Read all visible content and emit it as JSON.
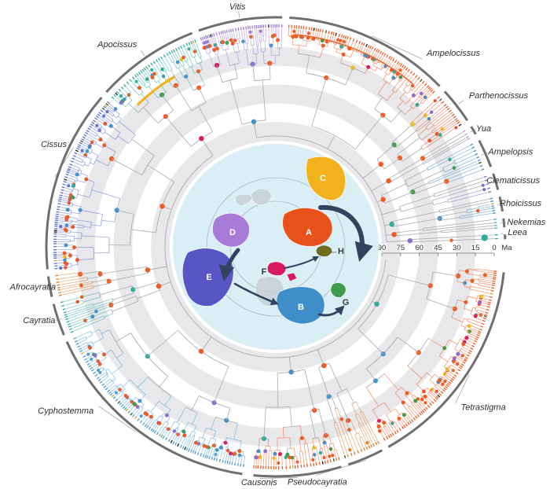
{
  "chart_data": {
    "type": "circular-phylogeny",
    "time_axis": {
      "unit": "Ma",
      "ticks": [
        90,
        75,
        60,
        45,
        30,
        15,
        0
      ],
      "max": 90
    },
    "clades": [
      {
        "name": "Vitis",
        "angle_start": -20,
        "angle_end": 2,
        "color": "#9b7fd4",
        "tips": 38
      },
      {
        "name": "Ampelocissus",
        "angle_start": 3,
        "angle_end": 46,
        "color": "#f15a22",
        "tips": 66,
        "label_angle": 38
      },
      {
        "name": "Parthenocissus",
        "angle_start": 47,
        "angle_end": 57,
        "color": "#e4572e",
        "tips": 14
      },
      {
        "name": "Yua",
        "angle_start": 58,
        "angle_end": 61,
        "color": "#c39bd3",
        "tips": 4
      },
      {
        "name": "Ampelopsis",
        "angle_start": 62,
        "angle_end": 70,
        "color": "#4a90c8",
        "tips": 11
      },
      {
        "name": "Clematicissus",
        "angle_start": 71,
        "angle_end": 76,
        "color": "#7d6bce",
        "tips": 6
      },
      {
        "name": "Rhoicissus",
        "angle_start": 77,
        "angle_end": 81.5,
        "color": "#4a90c8",
        "tips": 6
      },
      {
        "name": "Nekemias",
        "angle_start": 82.5,
        "angle_end": 85.5,
        "color": "#55a8cf",
        "tips": 4
      },
      {
        "name": "Leea",
        "angle_start": 86.5,
        "angle_end": 88.5,
        "color": "#2fae9b",
        "tips": 2,
        "accent_dot": true,
        "label_angle": 86.5
      },
      {
        "name": "Tetrastigma",
        "angle_start": 96,
        "angle_end": 151,
        "color": "#f15a22",
        "tips": 84,
        "label_angle": 131
      },
      {
        "name": "Pseudocayratia",
        "angle_start": 152,
        "angle_end": 162,
        "color": "#e07b28",
        "tips": 12,
        "label_angle": 170
      },
      {
        "name": "Causonis",
        "angle_start": 163,
        "angle_end": 186,
        "color": "#f15a22",
        "tips": 30,
        "label_angle": 184
      },
      {
        "name": "Cyphostemma",
        "angle_start": 188,
        "angle_end": 246,
        "color": "#4a9fd4",
        "tips": 80,
        "label_angle": 228
      },
      {
        "name": "Cayratia",
        "angle_start": 247,
        "angle_end": 256,
        "color": "#2fae9b",
        "tips": 12
      },
      {
        "name": "Afrocayratia",
        "angle_start": 257,
        "angle_end": 263,
        "color": "#e07b28",
        "tips": 8
      },
      {
        "name": "Cissus",
        "angle_start": 264,
        "angle_end": 311,
        "color": "#5b6fd8",
        "tips": 72,
        "label_angle": 296
      },
      {
        "name": "Apocissus",
        "angle_start": 312,
        "angle_end": 339,
        "color": "#2fae9b",
        "tips": 34
      }
    ],
    "node_dot_palette": [
      {
        "c": "#f15a22",
        "w": 0.54
      },
      {
        "c": "#4593c8",
        "w": 0.16
      },
      {
        "c": "#2fae9b",
        "w": 0.08
      },
      {
        "c": "#8d6fd0",
        "w": 0.07
      },
      {
        "c": "#3f9c4e",
        "w": 0.06
      },
      {
        "c": "#f2c12e",
        "w": 0.05
      },
      {
        "c": "#d81b60",
        "w": 0.04
      }
    ],
    "tip_accent_colors": [
      "#2d5a1b",
      "#caa61e",
      "#1a1a1a"
    ],
    "highlight_arcs": [
      {
        "angle_start": 316,
        "angle_end": 329,
        "radius": 252,
        "color": "#f2b21d",
        "width": 3
      },
      {
        "angle_start": 5,
        "angle_end": 40,
        "radius": 271,
        "color": "#f15a22",
        "width": 1.4
      }
    ],
    "map": {
      "ocean_color": "#daeef5",
      "regions": [
        {
          "label": "A",
          "color": "#e8521a",
          "label_color": "#ffffff"
        },
        {
          "label": "B",
          "color": "#3f8ec9",
          "label_color": "#ffffff"
        },
        {
          "label": "C",
          "color": "#f2b21d",
          "label_color": "#ffffff"
        },
        {
          "label": "D",
          "color": "#a87bd8",
          "label_color": "#ffffff"
        },
        {
          "label": "E",
          "color": "#5a55c4",
          "label_color": "#ffffff"
        },
        {
          "label": "F",
          "color": "#d81b60",
          "label_color": "#3a3a3a"
        },
        {
          "label": "G",
          "color": "#3f9c4e",
          "label_color": "#3a3a3a"
        },
        {
          "label": "H",
          "color": "#6d6d22",
          "label_color": "#3a3a3a"
        }
      ]
    }
  }
}
